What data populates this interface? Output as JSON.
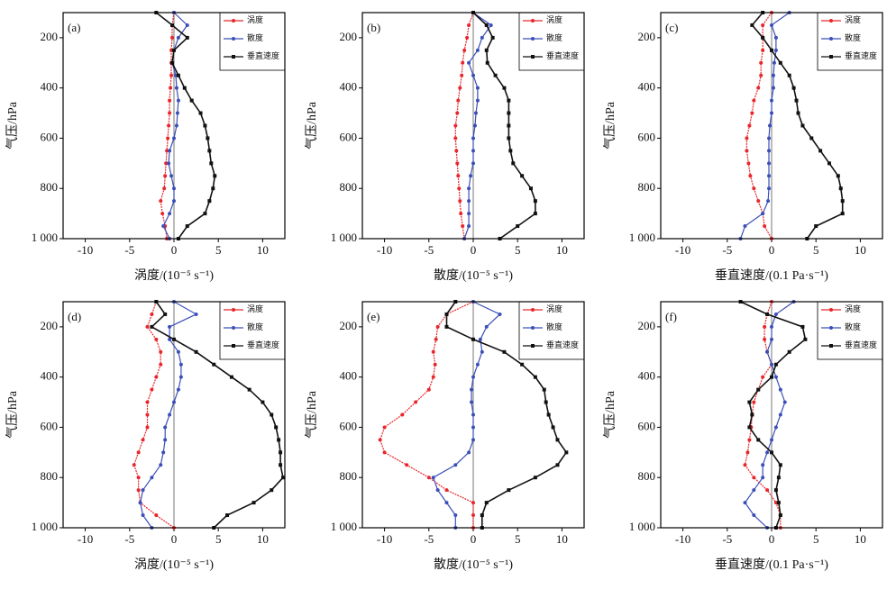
{
  "chart_data": [
    {
      "type": "line",
      "panel_label": "(a)",
      "x_label": "涡度/(10⁻⁵ s⁻¹)",
      "y_label": "气压/hPa",
      "y": [
        100,
        150,
        200,
        250,
        300,
        350,
        400,
        450,
        500,
        550,
        600,
        650,
        700,
        750,
        800,
        850,
        900,
        950,
        1000
      ],
      "xlim": [
        -12.5,
        12.5
      ],
      "ylim": [
        1000,
        100
      ],
      "xticks": [
        -10,
        -5,
        0,
        5,
        10
      ],
      "yticks": [
        200,
        400,
        600,
        800,
        {
          "value": 1000,
          "label": "1 000"
        }
      ],
      "series": [
        {
          "name": "涡度",
          "color": "#e8262b",
          "values": [
            0,
            -0.2,
            -0.2,
            -0.3,
            -0.3,
            -0.3,
            -0.4,
            -0.5,
            -0.5,
            -0.6,
            -0.7,
            -0.8,
            -0.9,
            -1,
            -1.1,
            -1.5,
            -1.3,
            -1,
            -0.8
          ]
        },
        {
          "name": "散度",
          "color": "#3b4fb8",
          "values": [
            0,
            1.5,
            0.5,
            0,
            -0.2,
            0.2,
            0.3,
            0.5,
            0.4,
            0.3,
            0,
            -0.5,
            -0.6,
            -0.3,
            0,
            0,
            -0.5,
            -1.2,
            -0.5
          ]
        },
        {
          "name": "垂直速度",
          "color": "#111111",
          "values": [
            -2,
            -0.2,
            1.5,
            0,
            -0.2,
            0.5,
            1.2,
            2,
            3,
            3.5,
            3.8,
            4,
            4.2,
            4.6,
            4.4,
            4,
            3.5,
            1.5,
            0.5
          ]
        }
      ]
    },
    {
      "type": "line",
      "panel_label": "(b)",
      "x_label": "散度/(10⁻⁵ s⁻¹)",
      "y_label": "气压/hPa",
      "y": [
        100,
        150,
        200,
        250,
        300,
        350,
        400,
        450,
        500,
        550,
        600,
        650,
        700,
        750,
        800,
        850,
        900,
        950,
        1000
      ],
      "xlim": [
        -12.5,
        12.5
      ],
      "ylim": [
        1000,
        100
      ],
      "xticks": [
        -10,
        -5,
        0,
        5,
        10
      ],
      "yticks": [
        200,
        400,
        600,
        800,
        {
          "value": 1000,
          "label": "1 000"
        }
      ],
      "series": [
        {
          "name": "涡度",
          "color": "#e8262b",
          "values": [
            0,
            -0.5,
            -0.7,
            -1,
            -1.2,
            -1.3,
            -1.5,
            -1.7,
            -1.8,
            -2,
            -2,
            -1.9,
            -1.8,
            -1.7,
            -1.6,
            -1.5,
            -1.4,
            -1.2,
            -1
          ]
        },
        {
          "name": "散度",
          "color": "#3b4fb8",
          "values": [
            0,
            2,
            1,
            0.5,
            -0.5,
            0,
            0.5,
            0.5,
            0.3,
            0.2,
            0,
            0,
            0,
            -0.3,
            -0.5,
            -0.5,
            -0.5,
            -0.5,
            -1
          ]
        },
        {
          "name": "垂直速度",
          "color": "#111111",
          "values": [
            0,
            1.5,
            2.2,
            1.5,
            1.6,
            2.5,
            3.5,
            4,
            4,
            4,
            4,
            4.2,
            4.5,
            5.5,
            6.5,
            7,
            7,
            5,
            3
          ]
        }
      ]
    },
    {
      "type": "line",
      "panel_label": "(c)",
      "x_label": "垂直速度/(0.1 Pa·s⁻¹)",
      "y_label": "气压/hPa",
      "y": [
        100,
        150,
        200,
        250,
        300,
        350,
        400,
        450,
        500,
        550,
        600,
        650,
        700,
        750,
        800,
        850,
        900,
        950,
        1000
      ],
      "xlim": [
        -12.5,
        12.5
      ],
      "ylim": [
        1000,
        100
      ],
      "xticks": [
        -10,
        -5,
        0,
        5,
        10
      ],
      "yticks": [
        200,
        400,
        600,
        800,
        {
          "value": 1000,
          "label": "1 000"
        }
      ],
      "series": [
        {
          "name": "涡度",
          "color": "#e8262b",
          "values": [
            0,
            -1,
            -1,
            -1,
            -1.2,
            -1.2,
            -1.5,
            -2,
            -2.2,
            -2.5,
            -2.8,
            -2.8,
            -2.6,
            -2.4,
            -2,
            -1.5,
            -1,
            -0.8,
            0
          ]
        },
        {
          "name": "散度",
          "color": "#3b4fb8",
          "values": [
            2,
            0,
            0.5,
            0.5,
            0.3,
            0.2,
            0.2,
            0,
            0,
            -0.2,
            -0.3,
            -0.3,
            -0.3,
            -0.3,
            -0.3,
            -0.4,
            -1,
            -3,
            -3.5
          ]
        },
        {
          "name": "垂直速度",
          "color": "#111111",
          "values": [
            -1,
            -2.2,
            -1,
            0,
            1,
            2,
            2.5,
            2.8,
            3,
            3.5,
            4.5,
            5.5,
            6.5,
            7.5,
            7.8,
            8,
            8,
            5,
            4
          ]
        }
      ]
    },
    {
      "type": "line",
      "panel_label": "(d)",
      "x_label": "涡度/(10⁻⁵ s⁻¹)",
      "y_label": "气压/hPa",
      "y": [
        100,
        150,
        200,
        250,
        300,
        350,
        400,
        450,
        500,
        550,
        600,
        650,
        700,
        750,
        800,
        850,
        900,
        950,
        1000
      ],
      "xlim": [
        -12.5,
        12.5
      ],
      "ylim": [
        1000,
        100
      ],
      "xticks": [
        -10,
        -5,
        0,
        5,
        10
      ],
      "yticks": [
        200,
        400,
        600,
        800,
        {
          "value": 1000,
          "label": "1 000"
        }
      ],
      "series": [
        {
          "name": "涡度",
          "color": "#e8262b",
          "values": [
            -2,
            -2.5,
            -3,
            -2,
            -1.5,
            -1.5,
            -2,
            -2.5,
            -3,
            -3,
            -3,
            -3.5,
            -4,
            -4.5,
            -4,
            -4,
            -3.8,
            -2,
            0
          ]
        },
        {
          "name": "散度",
          "color": "#3b4fb8",
          "values": [
            0,
            2.5,
            -0.5,
            -0.5,
            0.5,
            0.8,
            0.8,
            0.5,
            0,
            -0.5,
            -1,
            -1,
            -1.2,
            -1.5,
            -2.5,
            -3.5,
            -3.8,
            -3.5,
            -2.5
          ]
        },
        {
          "name": "垂直速度",
          "color": "#111111",
          "values": [
            -2,
            -1,
            -2.5,
            0,
            2.5,
            4.5,
            6.5,
            8.5,
            10,
            11,
            11.5,
            11.8,
            12,
            12,
            12.3,
            11,
            9,
            6,
            4.5
          ]
        }
      ]
    },
    {
      "type": "line",
      "panel_label": "(e)",
      "x_label": "散度/(10⁻⁵ s⁻¹)",
      "y_label": "气压/hPa",
      "y": [
        100,
        150,
        200,
        250,
        300,
        350,
        400,
        450,
        500,
        550,
        600,
        650,
        700,
        750,
        800,
        850,
        900,
        950,
        1000
      ],
      "xlim": [
        -12.5,
        12.5
      ],
      "ylim": [
        1000,
        100
      ],
      "xticks": [
        -10,
        -5,
        0,
        5,
        10
      ],
      "yticks": [
        200,
        400,
        600,
        800,
        {
          "value": 1000,
          "label": "1 000"
        }
      ],
      "series": [
        {
          "name": "涡度",
          "color": "#e8262b",
          "values": [
            0,
            -3,
            -4,
            -4.2,
            -4.5,
            -4.3,
            -4.5,
            -5,
            -6.5,
            -8,
            -10,
            -10.5,
            -10,
            -7.5,
            -5,
            -3,
            0,
            0,
            0
          ]
        },
        {
          "name": "散度",
          "color": "#3b4fb8",
          "values": [
            0,
            3,
            1.5,
            0.8,
            1,
            0.5,
            0,
            -0.2,
            -0.2,
            0,
            0,
            0,
            -0.5,
            -2,
            -4.5,
            -4,
            -3,
            -2,
            -2
          ]
        },
        {
          "name": "垂直速度",
          "color": "#111111",
          "values": [
            -2,
            -3,
            -3,
            0,
            3.5,
            5.5,
            7,
            8,
            8.2,
            8.5,
            9,
            9.5,
            10.5,
            9.5,
            7,
            4,
            1.5,
            1,
            1
          ]
        }
      ]
    },
    {
      "type": "line",
      "panel_label": "(f)",
      "x_label": "垂直速度/(0.1 Pa·s⁻¹)",
      "y_label": "气压/hPa",
      "y": [
        100,
        150,
        200,
        250,
        300,
        350,
        400,
        450,
        500,
        550,
        600,
        650,
        700,
        750,
        800,
        850,
        900,
        950,
        1000
      ],
      "xlim": [
        -12.5,
        12.5
      ],
      "ylim": [
        1000,
        100
      ],
      "xticks": [
        -10,
        -5,
        0,
        5,
        10
      ],
      "yticks": [
        200,
        400,
        600,
        800,
        {
          "value": 1000,
          "label": "1 000"
        }
      ],
      "series": [
        {
          "name": "涡度",
          "color": "#e8262b",
          "values": [
            0,
            -0.5,
            -0.8,
            -0.8,
            -0.5,
            0,
            -1,
            -1.5,
            -2,
            -2.2,
            -2.3,
            -2.5,
            -2.7,
            -3,
            -2,
            -0.5,
            0.5,
            1,
            1
          ]
        },
        {
          "name": "散度",
          "color": "#3b4fb8",
          "values": [
            2.5,
            0.5,
            0,
            0,
            -0.5,
            0,
            0.5,
            1,
            1.5,
            1,
            0.5,
            0,
            -0.5,
            -1,
            -1,
            -2,
            -3,
            -2,
            -0.5
          ]
        },
        {
          "name": "垂直速度",
          "color": "#111111",
          "values": [
            -3.5,
            -0.5,
            3.5,
            3.8,
            2,
            0.5,
            0,
            -1.5,
            -2.5,
            -2.2,
            -2.5,
            -1.5,
            0,
            1,
            0.8,
            0.5,
            0.8,
            1,
            0.5
          ]
        }
      ]
    }
  ]
}
